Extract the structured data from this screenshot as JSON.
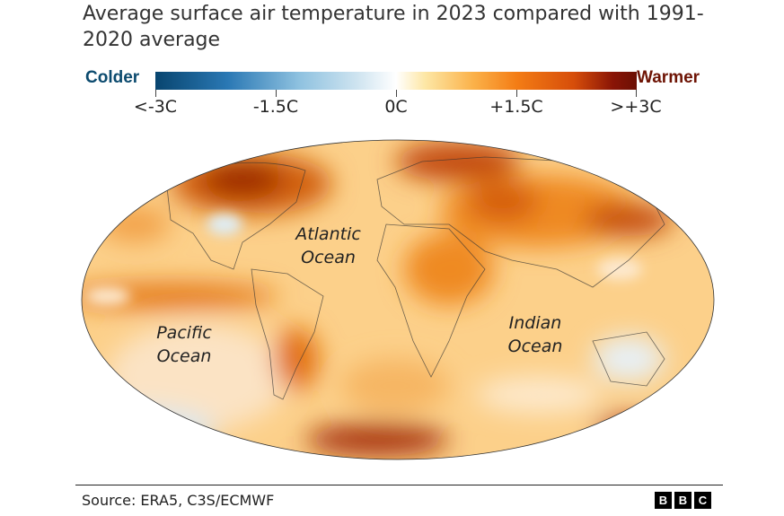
{
  "title": "Average surface air temperature in 2023 compared with 1991-2020 average",
  "legend": {
    "colder_label": "Colder",
    "warmer_label": "Warmer",
    "ticks": [
      "<-3C",
      "-1.5C",
      "0C",
      "+1.5C",
      ">+3C"
    ],
    "colors": {
      "cold": "#08456f",
      "neutral": "#ffffff",
      "warm": "#6b0f04"
    }
  },
  "map": {
    "labels": {
      "atlantic": [
        "Atlantic",
        "Ocean"
      ],
      "pacific": [
        "Pacific",
        "Ocean"
      ],
      "indian": [
        "Indian",
        "Ocean"
      ]
    }
  },
  "footer": {
    "source": "Source: ERA5, C3S/ECMWF",
    "logo": [
      "B",
      "B",
      "C"
    ]
  }
}
